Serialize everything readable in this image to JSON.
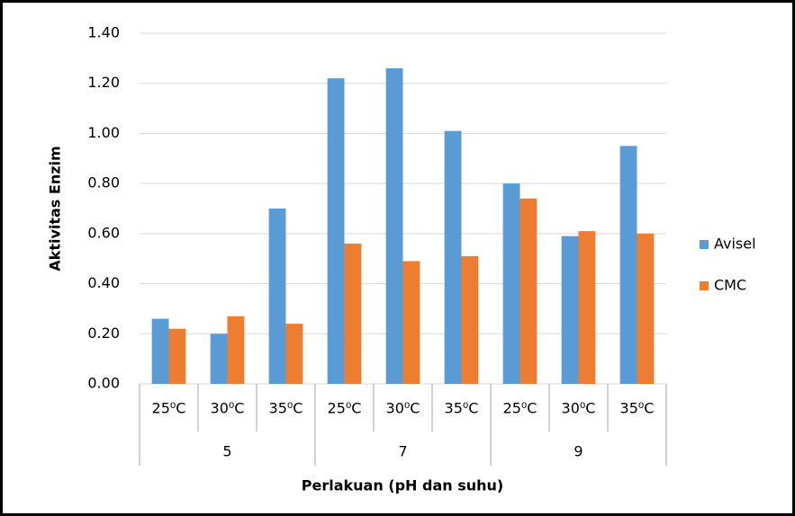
{
  "chart_data": {
    "type": "bar",
    "y_label": "Aktivitas Enzim",
    "x_label": "Perlakuan (pH dan suhu)",
    "groups": [
      {
        "label": "5",
        "categories": [
          "25⁰C",
          "30⁰C",
          "35⁰C"
        ]
      },
      {
        "label": "7",
        "categories": [
          "25⁰C",
          "30⁰C",
          "35⁰C"
        ]
      },
      {
        "label": "9",
        "categories": [
          "25⁰C",
          "30⁰C",
          "35⁰C"
        ]
      }
    ],
    "series": [
      {
        "name": "Avisel",
        "color": "#5b9bd5",
        "values": [
          0.26,
          0.2,
          0.7,
          1.22,
          1.26,
          1.01,
          0.8,
          0.59,
          0.95
        ]
      },
      {
        "name": "CMC",
        "color": "#ed7d31",
        "values": [
          0.22,
          0.27,
          0.24,
          0.56,
          0.49,
          0.51,
          0.74,
          0.61,
          0.6
        ]
      }
    ],
    "ylim": [
      0,
      1.4
    ],
    "yticks": [
      {
        "value": 0,
        "label": "0.00"
      },
      {
        "value": 0.2,
        "label": "0.20"
      },
      {
        "value": 0.4,
        "label": "0.40"
      },
      {
        "value": 0.6,
        "label": "0.60"
      },
      {
        "value": 0.8,
        "label": "0.80"
      },
      {
        "value": 1.0,
        "label": "1.00"
      },
      {
        "value": 1.2,
        "label": "1.20"
      },
      {
        "value": 1.4,
        "label": "1.40"
      }
    ],
    "grid": true,
    "legend": "right"
  }
}
